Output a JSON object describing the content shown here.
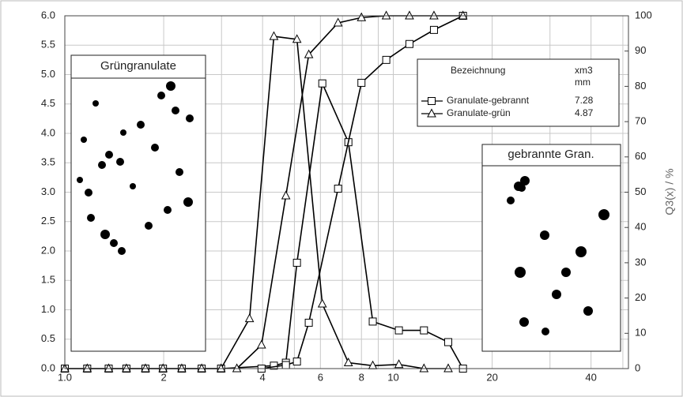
{
  "chart_data": {
    "type": "line",
    "xscale": "log",
    "xlim": [
      1,
      52
    ],
    "xticks": [
      {
        "value": 1,
        "label": "1.0"
      },
      2,
      4,
      6,
      8,
      10,
      20,
      40
    ],
    "xminor": [
      3,
      5,
      7,
      9,
      30,
      50
    ],
    "ylim": [
      0,
      6
    ],
    "yticks": [
      {
        "value": 0,
        "label": "0.0"
      },
      0.5,
      {
        "value": 1,
        "label": "1.0"
      },
      1.5,
      {
        "value": 2,
        "label": "2.0"
      },
      2.5,
      {
        "value": 3,
        "label": "3.0"
      },
      3.5,
      {
        "value": 4,
        "label": "4.0"
      },
      4.5,
      {
        "value": 5,
        "label": "5.0"
      },
      5.5,
      {
        "value": 6,
        "label": "6.0"
      }
    ],
    "y2lim": [
      0,
      100
    ],
    "y2ticks": [
      0,
      10,
      20,
      30,
      40,
      50,
      60,
      70,
      80,
      90,
      100
    ],
    "y2label": "Q3(x) / %",
    "grid": true,
    "legend_header": "Bezeichnung",
    "legend_column": "xm3",
    "legend_unit": "mm",
    "series": [
      {
        "name": "Granulate-gebrannt",
        "marker": "square",
        "color": "#000000",
        "xm3": 7.28,
        "density": {
          "x": [
            1.0,
            1.17,
            1.36,
            1.54,
            1.76,
            1.99,
            2.27,
            2.61,
            2.99,
            4.33,
            4.71,
            5.09,
            6.08,
            7.3,
            8.66,
            10.4,
            12.4,
            14.7,
            16.3
          ],
          "values": [
            0,
            0,
            0,
            0,
            0,
            0,
            0,
            0,
            0,
            0.05,
            0.1,
            1.8,
            4.85,
            3.85,
            0.8,
            0.65,
            0.65,
            0.45,
            0
          ]
        },
        "cumulative": {
          "axis": "y2",
          "x": [
            3.97,
            4.71,
            5.09,
            5.53,
            6.79,
            8.0,
            9.52,
            11.2,
            13.3,
            16.3
          ],
          "values": [
            0,
            1,
            2,
            13,
            51,
            81,
            87.5,
            92,
            96,
            100
          ]
        }
      },
      {
        "name": "Granulate-grün",
        "marker": "triangle",
        "color": "#000000",
        "xm3": 4.87,
        "density": {
          "x": [
            1.0,
            1.17,
            1.36,
            1.54,
            1.76,
            1.99,
            2.27,
            2.61,
            2.99,
            3.65,
            4.33,
            5.09,
            6.08,
            7.3,
            8.66,
            10.4,
            12.4,
            14.7
          ],
          "values": [
            0,
            0,
            0,
            0,
            0,
            0,
            0,
            0,
            0,
            0.85,
            5.65,
            5.6,
            1.1,
            0.1,
            0.05,
            0.07,
            0,
            0
          ]
        },
        "cumulative": {
          "axis": "y2",
          "x": [
            3.34,
            3.97,
            4.71,
            5.53,
            6.79,
            8.0,
            9.52,
            11.2,
            13.3,
            16.3
          ],
          "values": [
            0,
            6.7,
            49,
            89,
            98,
            99.5,
            100,
            100,
            100,
            100
          ]
        }
      }
    ],
    "insets": [
      "Grüngranulate",
      "gebrannte Gran."
    ]
  }
}
